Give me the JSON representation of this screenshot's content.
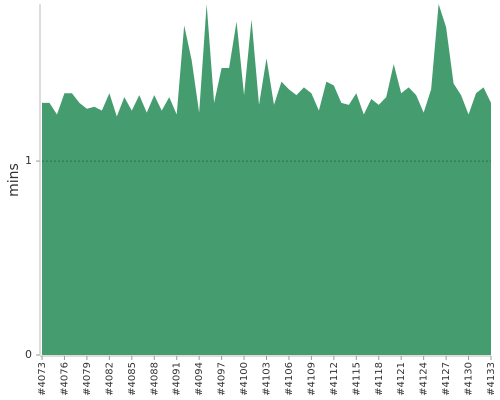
{
  "chart_data": {
    "type": "area",
    "y_label": "mins",
    "categories": [
      "#4073",
      null,
      null,
      "#4076",
      null,
      null,
      "#4079",
      null,
      null,
      "#4082",
      null,
      null,
      "#4085",
      null,
      null,
      "#4088",
      null,
      null,
      "#4091",
      null,
      null,
      "#4094",
      null,
      null,
      "#4097",
      null,
      null,
      "#4100",
      null,
      null,
      "#4103",
      null,
      null,
      "#4106",
      null,
      null,
      "#4109",
      null,
      null,
      "#4112",
      null,
      null,
      "#4115",
      null,
      null,
      "#4118",
      null,
      null,
      "#4121",
      null,
      null,
      "#4124",
      null,
      null,
      "#4127",
      null,
      null,
      "#4130",
      null,
      null,
      "#4133"
    ],
    "values": [
      1.3,
      1.3,
      1.24,
      1.35,
      1.35,
      1.3,
      1.27,
      1.28,
      1.26,
      1.35,
      1.23,
      1.33,
      1.26,
      1.34,
      1.25,
      1.34,
      1.26,
      1.33,
      1.24,
      1.7,
      1.52,
      1.25,
      1.81,
      1.3,
      1.48,
      1.48,
      1.72,
      1.34,
      1.73,
      1.29,
      1.53,
      1.29,
      1.41,
      1.37,
      1.34,
      1.38,
      1.35,
      1.26,
      1.41,
      1.39,
      1.3,
      1.29,
      1.35,
      1.24,
      1.32,
      1.29,
      1.33,
      1.5,
      1.35,
      1.38,
      1.34,
      1.25,
      1.37,
      1.81,
      1.69,
      1.4,
      1.34,
      1.24,
      1.35,
      1.38,
      1.3
    ],
    "color": "#459c6e",
    "ylim": [
      0,
      1.81
    ],
    "yticks": [
      0,
      1
    ],
    "grid": true
  }
}
